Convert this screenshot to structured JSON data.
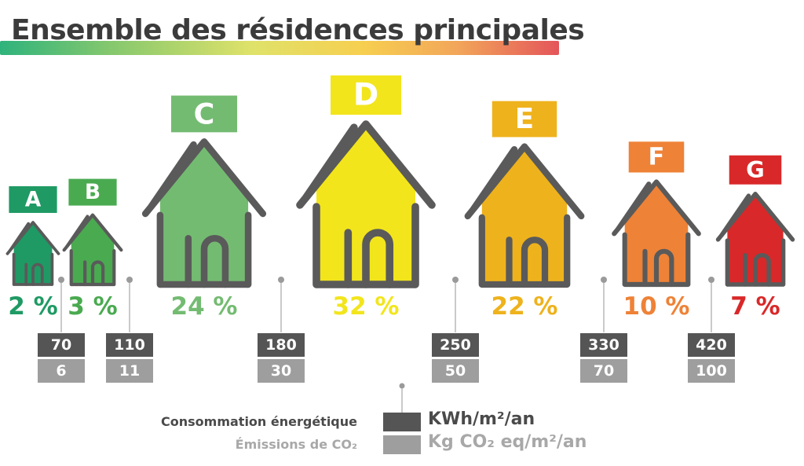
{
  "title": "Ensemble des résidences principales",
  "colors": {
    "A": "#1f9a64",
    "B": "#4aaa50",
    "C": "#74bb72",
    "D": "#f2e51c",
    "E": "#eeb21c",
    "F": "#ee8237",
    "G": "#d92829",
    "outline": "#5a5a5a",
    "energy_box": "#555555",
    "co2_box": "#9e9e9e"
  },
  "chart_data": {
    "type": "bar",
    "categories": [
      "A",
      "B",
      "C",
      "D",
      "E",
      "F",
      "G"
    ],
    "values": [
      2,
      3,
      24,
      32,
      22,
      10,
      7
    ],
    "value_labels": [
      "2 %",
      "3 %",
      "24 %",
      "32 %",
      "22 %",
      "10 %",
      "7 %"
    ],
    "title": "Ensemble des résidences principales",
    "thresholds": {
      "energy": [
        "70",
        "110",
        "180",
        "250",
        "330",
        "420"
      ],
      "co2": [
        "6",
        "11",
        "30",
        "50",
        "70",
        "100"
      ]
    }
  },
  "legend": {
    "energy_label": "Consommation énergétique",
    "energy_unit": "KWh/m²/an",
    "co2_label": "Émissions de CO₂",
    "co2_unit": "Kg CO₂ eq/m²/an"
  }
}
